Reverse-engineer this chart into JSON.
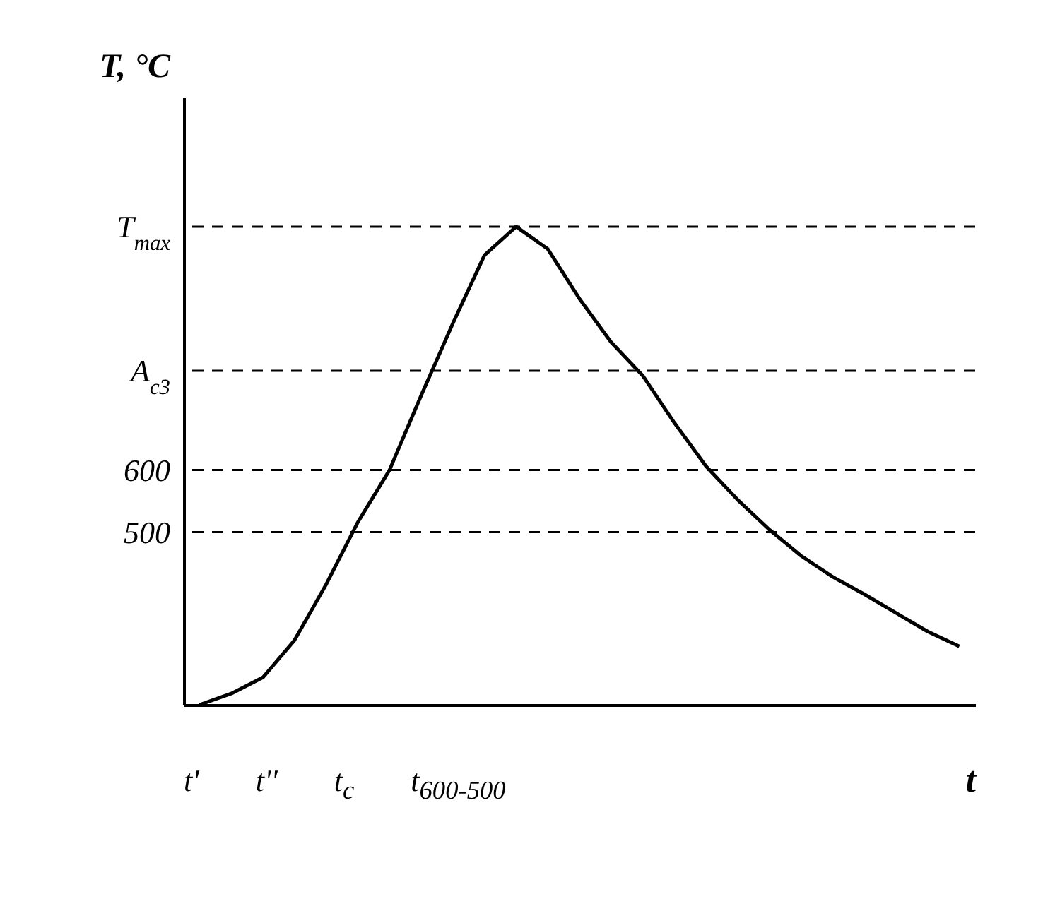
{
  "chart_data": {
    "type": "line",
    "xlabel": "t",
    "ylabel": "T, °C",
    "categories": [
      null,
      null,
      null,
      null,
      null,
      null,
      null,
      null,
      null,
      null,
      null,
      null,
      null,
      null,
      null,
      null,
      null,
      null,
      null,
      null,
      null,
      null,
      null,
      null,
      null
    ],
    "series": [
      {
        "color": "#000000",
        "values": [
          222,
          240,
          266,
          326,
          416,
          516,
          600,
          720,
          836,
          946,
          992,
          956,
          876,
          806,
          752,
          676,
          606,
          552,
          504,
          462,
          428,
          400,
          370,
          340,
          316
        ]
      }
    ],
    "ylim": [
      222,
      1200
    ],
    "yticks": [
      500,
      600,
      {
        "value": 760,
        "label": "A$_{c3}$"
      },
      {
        "value": 992,
        "label": "T$_{max}$"
      }
    ],
    "ref_lines": [
      {
        "axis": "y",
        "value": 500,
        "color": "#000000",
        "line_style": "dashed"
      },
      {
        "axis": "y",
        "value": 600,
        "color": "#000000",
        "line_style": "dashed"
      },
      {
        "axis": "y",
        "value": 760,
        "color": "#000000",
        "line_style": "dashed"
      },
      {
        "axis": "y",
        "value": 992,
        "color": "#000000",
        "line_style": "dashed"
      }
    ],
    "annotations": [
      "t'",
      "t''",
      "t$_{c}$",
      "t$_{600-500}$"
    ],
    "tick_labels": "y",
    "grid": false,
    "marker": "none"
  }
}
